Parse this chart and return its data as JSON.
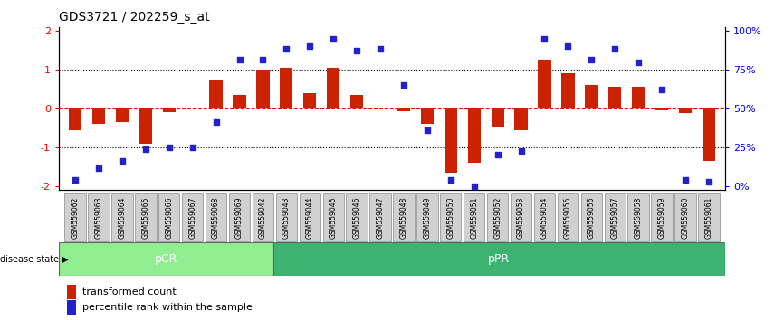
{
  "title": "GDS3721 / 202259_s_at",
  "samples": [
    "GSM559062",
    "GSM559063",
    "GSM559064",
    "GSM559065",
    "GSM559066",
    "GSM559067",
    "GSM559068",
    "GSM559069",
    "GSM559042",
    "GSM559043",
    "GSM559044",
    "GSM559045",
    "GSM559046",
    "GSM559047",
    "GSM559048",
    "GSM559049",
    "GSM559050",
    "GSM559051",
    "GSM559052",
    "GSM559053",
    "GSM559054",
    "GSM559055",
    "GSM559056",
    "GSM559057",
    "GSM559058",
    "GSM559059",
    "GSM559060",
    "GSM559061"
  ],
  "bar_values": [
    -0.55,
    -0.4,
    -0.35,
    -0.9,
    -0.1,
    0.0,
    0.75,
    0.35,
    1.0,
    1.05,
    0.4,
    1.05,
    0.35,
    0.0,
    -0.08,
    -0.4,
    -1.65,
    -1.4,
    -0.5,
    -0.55,
    1.25,
    0.9,
    0.6,
    0.55,
    0.55,
    -0.05,
    -0.12,
    -1.35
  ],
  "dot_values": [
    -1.85,
    -1.55,
    -1.35,
    -1.05,
    -1.0,
    -1.0,
    -0.35,
    1.25,
    1.25,
    1.55,
    1.6,
    1.8,
    1.5,
    1.55,
    0.6,
    -0.55,
    -1.85,
    -2.0,
    -1.2,
    -1.1,
    1.8,
    1.6,
    1.25,
    1.55,
    1.2,
    0.5,
    -1.85,
    -1.9
  ],
  "pCR_count": 9,
  "pPR_count": 19,
  "bar_color": "#cc2200",
  "dot_color": "#2222cc",
  "ylim": [
    -2.1,
    2.1
  ],
  "yticks_left": [
    -2,
    -1,
    0,
    1,
    2
  ],
  "right_tick_positions": [
    -2,
    -1,
    0,
    1,
    2
  ],
  "right_tick_labels": [
    "0%",
    "25%",
    "50%",
    "75%",
    "100%"
  ],
  "background_color": "#ffffff",
  "pCR_color": "#90ee90",
  "pPR_color": "#3cb371",
  "title_fontsize": 10,
  "tick_box_color": "#d0d0d0",
  "tick_box_edge": "#888888",
  "legend_items": [
    "transformed count",
    "percentile rank within the sample"
  ]
}
